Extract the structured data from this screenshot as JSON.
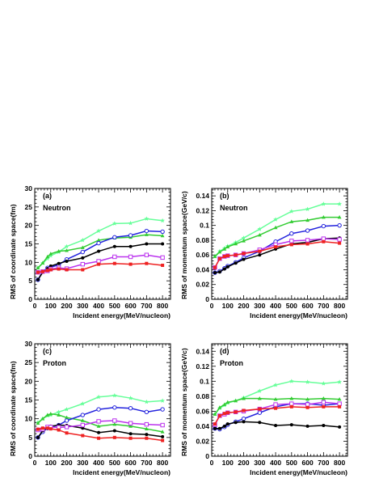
{
  "chart_data": [
    {
      "type": "line",
      "panel_label": "(a)",
      "panel_title": "Neutron",
      "xlabel": "Incident energy(MeV/nucleon)",
      "ylabel": "RMS of coordinate space(fm)",
      "xlim": [
        0,
        850
      ],
      "ylim": [
        0,
        30
      ],
      "x_ticks": [
        0,
        100,
        200,
        300,
        400,
        500,
        600,
        700,
        800
      ],
      "y_ticks": [
        0,
        5,
        10,
        15,
        20,
        25,
        30
      ],
      "grid": false,
      "series": [
        {
          "color": "#66ff99",
          "marker": "star",
          "x": [
            20,
            50,
            80,
            100,
            150,
            200,
            300,
            400,
            500,
            600,
            700,
            800
          ],
          "values": [
            8.5,
            9.8,
            11.0,
            11.8,
            12.8,
            14.3,
            16.0,
            18.5,
            20.5,
            20.6,
            21.8,
            21.3
          ]
        },
        {
          "color": "#33cc33",
          "marker": "triangle",
          "x": [
            20,
            50,
            80,
            100,
            150,
            200,
            300,
            400,
            500,
            600,
            700,
            800
          ],
          "values": [
            8.5,
            9.8,
            11.5,
            12.3,
            13.0,
            13.2,
            14.0,
            16.0,
            16.6,
            16.8,
            17.5,
            17.2
          ]
        },
        {
          "color": "#2222dd",
          "marker": "circle-open",
          "x": [
            20,
            50,
            80,
            100,
            150,
            200,
            300,
            400,
            500,
            600,
            700,
            800
          ],
          "values": [
            5.3,
            7.5,
            8.5,
            8.7,
            9.3,
            10.8,
            12.8,
            15.2,
            16.8,
            17.3,
            18.5,
            18.3
          ]
        },
        {
          "color": "#000000",
          "marker": "circle",
          "x": [
            20,
            50,
            80,
            100,
            150,
            200,
            300,
            400,
            500,
            600,
            700,
            800
          ],
          "values": [
            5.3,
            7.3,
            8.3,
            9.0,
            9.7,
            10.3,
            11.2,
            13.0,
            14.3,
            14.3,
            15.0,
            15.0
          ]
        },
        {
          "color": "#bb33ee",
          "marker": "square-open",
          "x": [
            20,
            50,
            80,
            100,
            150,
            200,
            300,
            400,
            500,
            600,
            700,
            800
          ],
          "values": [
            7.3,
            7.5,
            7.7,
            8.2,
            8.5,
            8.3,
            9.5,
            10.3,
            11.5,
            11.5,
            12.0,
            11.3
          ]
        },
        {
          "color": "#ee2222",
          "marker": "square",
          "x": [
            20,
            50,
            80,
            100,
            150,
            200,
            300,
            400,
            500,
            600,
            700,
            800
          ],
          "values": [
            7.3,
            7.5,
            7.8,
            8.0,
            8.2,
            8.0,
            8.0,
            9.5,
            9.7,
            9.5,
            9.7,
            9.2
          ]
        }
      ]
    },
    {
      "type": "line",
      "panel_label": "(b)",
      "panel_title": "Neutron",
      "xlabel": "Incident energy(MeV/nucleon)",
      "ylabel": "RMS of momentum space(GeV/c)",
      "xlim": [
        0,
        850
      ],
      "ylim": [
        0,
        0.15
      ],
      "x_ticks": [
        0,
        100,
        200,
        300,
        400,
        500,
        600,
        700,
        800
      ],
      "y_ticks": [
        0,
        0.02,
        0.04,
        0.06,
        0.08,
        0.1,
        0.12,
        0.14
      ],
      "grid": false,
      "series": [
        {
          "color": "#66ff99",
          "marker": "star",
          "x": [
            20,
            50,
            80,
            100,
            150,
            200,
            300,
            400,
            500,
            600,
            700,
            800
          ],
          "values": [
            0.058,
            0.065,
            0.069,
            0.072,
            0.077,
            0.083,
            0.095,
            0.108,
            0.119,
            0.122,
            0.129,
            0.129
          ]
        },
        {
          "color": "#33cc33",
          "marker": "triangle",
          "x": [
            20,
            50,
            80,
            100,
            150,
            200,
            300,
            400,
            500,
            600,
            700,
            800
          ],
          "values": [
            0.058,
            0.064,
            0.068,
            0.071,
            0.075,
            0.079,
            0.087,
            0.097,
            0.105,
            0.107,
            0.111,
            0.111
          ]
        },
        {
          "color": "#2222dd",
          "marker": "circle-open",
          "x": [
            20,
            50,
            80,
            100,
            150,
            200,
            300,
            400,
            500,
            600,
            700,
            800
          ],
          "values": [
            0.036,
            0.038,
            0.042,
            0.045,
            0.05,
            0.056,
            0.065,
            0.078,
            0.089,
            0.093,
            0.099,
            0.1
          ]
        },
        {
          "color": "#000000",
          "marker": "circle",
          "x": [
            20,
            50,
            80,
            100,
            150,
            200,
            300,
            400,
            500,
            600,
            700,
            800
          ],
          "values": [
            0.036,
            0.037,
            0.041,
            0.044,
            0.049,
            0.054,
            0.06,
            0.068,
            0.075,
            0.077,
            0.082,
            0.083
          ]
        },
        {
          "color": "#bb33ee",
          "marker": "square-open",
          "x": [
            20,
            50,
            80,
            100,
            150,
            200,
            300,
            400,
            500,
            600,
            700,
            800
          ],
          "values": [
            0.043,
            0.055,
            0.058,
            0.059,
            0.06,
            0.062,
            0.067,
            0.074,
            0.079,
            0.08,
            0.082,
            0.081
          ]
        },
        {
          "color": "#ee2222",
          "marker": "square",
          "x": [
            20,
            50,
            80,
            100,
            150,
            200,
            300,
            400,
            500,
            600,
            700,
            800
          ],
          "values": [
            0.043,
            0.055,
            0.058,
            0.059,
            0.06,
            0.062,
            0.065,
            0.071,
            0.074,
            0.075,
            0.078,
            0.076
          ]
        }
      ]
    },
    {
      "type": "line",
      "panel_label": "(c)",
      "panel_title": "Proton",
      "xlabel": "Incident energy(MeV/nucleon)",
      "ylabel": "RMS of coordinate space(fm)",
      "xlim": [
        0,
        850
      ],
      "ylim": [
        0,
        30
      ],
      "x_ticks": [
        0,
        100,
        200,
        300,
        400,
        500,
        600,
        700,
        800
      ],
      "y_ticks": [
        0,
        5,
        10,
        15,
        20,
        25,
        30
      ],
      "grid": false,
      "series": [
        {
          "color": "#66ff99",
          "marker": "star",
          "x": [
            20,
            50,
            80,
            100,
            150,
            200,
            300,
            400,
            500,
            600,
            700,
            800
          ],
          "values": [
            9.0,
            10.0,
            10.8,
            11.0,
            11.8,
            12.5,
            14.0,
            15.8,
            16.2,
            15.5,
            14.5,
            14.8
          ]
        },
        {
          "color": "#33cc33",
          "marker": "triangle",
          "x": [
            20,
            50,
            80,
            100,
            150,
            200,
            300,
            400,
            500,
            600,
            700,
            800
          ],
          "values": [
            8.8,
            10.0,
            11.0,
            11.3,
            11.0,
            10.3,
            9.5,
            8.0,
            8.5,
            8.0,
            7.3,
            6.5
          ]
        },
        {
          "color": "#2222dd",
          "marker": "circle-open",
          "x": [
            20,
            50,
            80,
            100,
            150,
            200,
            300,
            400,
            500,
            600,
            700,
            800
          ],
          "values": [
            5.0,
            6.5,
            7.5,
            7.8,
            8.3,
            9.5,
            11.0,
            12.5,
            13.0,
            12.8,
            11.8,
            12.5
          ]
        },
        {
          "color": "#000000",
          "marker": "circle",
          "x": [
            20,
            50,
            80,
            100,
            150,
            200,
            300,
            400,
            500,
            600,
            700,
            800
          ],
          "values": [
            5.0,
            6.8,
            7.5,
            8.0,
            8.3,
            8.2,
            7.5,
            6.3,
            6.8,
            6.0,
            5.8,
            5.2
          ]
        },
        {
          "color": "#bb33ee",
          "marker": "square-open",
          "x": [
            20,
            50,
            80,
            100,
            150,
            200,
            300,
            400,
            500,
            600,
            700,
            800
          ],
          "values": [
            7.0,
            7.2,
            7.8,
            7.8,
            7.7,
            7.8,
            8.3,
            9.3,
            9.5,
            8.8,
            8.5,
            8.3
          ]
        },
        {
          "color": "#ee2222",
          "marker": "square",
          "x": [
            20,
            50,
            80,
            100,
            150,
            200,
            300,
            400,
            500,
            600,
            700,
            800
          ],
          "values": [
            7.2,
            7.5,
            7.5,
            7.3,
            7.0,
            6.2,
            5.5,
            4.8,
            5.0,
            4.8,
            4.8,
            4.2
          ]
        }
      ]
    },
    {
      "type": "line",
      "panel_label": "(d)",
      "panel_title": "Proton",
      "xlabel": "Incident energy(MeV/nucleon)",
      "ylabel": "RMS of momentum space(GeV/c)",
      "xlim": [
        0,
        850
      ],
      "ylim": [
        0,
        0.15
      ],
      "x_ticks": [
        0,
        100,
        200,
        300,
        400,
        500,
        600,
        700,
        800
      ],
      "y_ticks": [
        0,
        0.02,
        0.04,
        0.06,
        0.08,
        0.1,
        0.12,
        0.14
      ],
      "grid": false,
      "series": [
        {
          "color": "#66ff99",
          "marker": "star",
          "x": [
            20,
            50,
            80,
            100,
            150,
            200,
            300,
            400,
            500,
            600,
            700,
            800
          ],
          "values": [
            0.056,
            0.064,
            0.068,
            0.071,
            0.074,
            0.078,
            0.087,
            0.095,
            0.1,
            0.099,
            0.097,
            0.099
          ]
        },
        {
          "color": "#33cc33",
          "marker": "triangle",
          "x": [
            20,
            50,
            80,
            100,
            150,
            200,
            300,
            400,
            500,
            600,
            700,
            800
          ],
          "values": [
            0.056,
            0.065,
            0.069,
            0.072,
            0.074,
            0.077,
            0.077,
            0.076,
            0.077,
            0.076,
            0.077,
            0.076
          ]
        },
        {
          "color": "#2222dd",
          "marker": "circle-open",
          "x": [
            20,
            50,
            80,
            100,
            150,
            200,
            300,
            400,
            500,
            600,
            700,
            800
          ],
          "values": [
            0.037,
            0.036,
            0.039,
            0.042,
            0.046,
            0.05,
            0.058,
            0.066,
            0.07,
            0.07,
            0.068,
            0.07
          ]
        },
        {
          "color": "#000000",
          "marker": "circle",
          "x": [
            20,
            50,
            80,
            100,
            150,
            200,
            300,
            400,
            500,
            600,
            700,
            800
          ],
          "values": [
            0.037,
            0.037,
            0.04,
            0.043,
            0.045,
            0.046,
            0.045,
            0.041,
            0.042,
            0.04,
            0.041,
            0.039
          ]
        },
        {
          "color": "#bb33ee",
          "marker": "square-open",
          "x": [
            20,
            50,
            80,
            100,
            150,
            200,
            300,
            400,
            500,
            600,
            700,
            800
          ],
          "values": [
            0.042,
            0.054,
            0.056,
            0.058,
            0.059,
            0.06,
            0.063,
            0.069,
            0.07,
            0.069,
            0.072,
            0.07
          ]
        },
        {
          "color": "#ee2222",
          "marker": "square",
          "x": [
            20,
            50,
            80,
            100,
            150,
            200,
            300,
            400,
            500,
            600,
            700,
            800
          ],
          "values": [
            0.043,
            0.054,
            0.057,
            0.058,
            0.059,
            0.061,
            0.063,
            0.064,
            0.066,
            0.065,
            0.066,
            0.066
          ]
        }
      ]
    }
  ]
}
